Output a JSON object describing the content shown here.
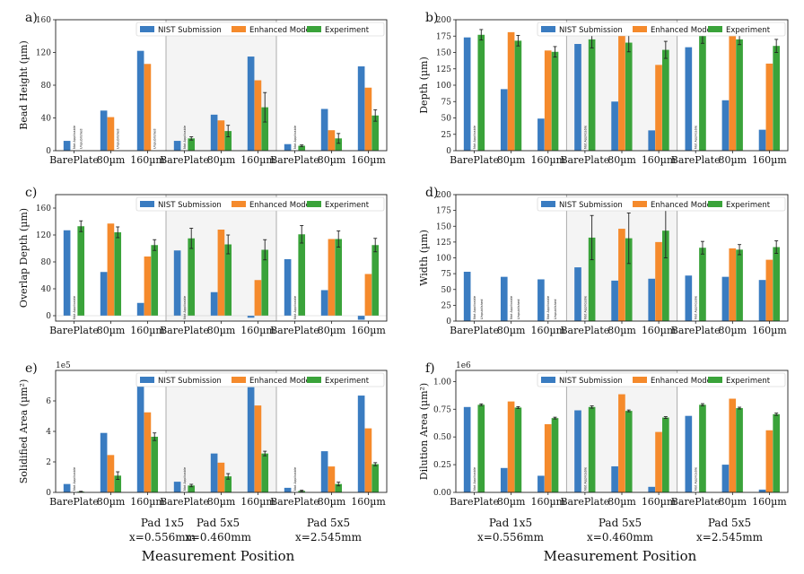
{
  "figure": {
    "groups": [
      {
        "line1": "Pad 1x5",
        "line2": "x=0.556mm"
      },
      {
        "line1": "Pad 5x5",
        "line2": "x=0.460mm"
      },
      {
        "line1": "Pad 5x5",
        "line2": "x=2.545mm"
      }
    ],
    "x_axis_title": "Measurement Position",
    "x_tick_labels": [
      "BarePlate",
      "80µm",
      "160µm",
      "BarePlate",
      "80µm",
      "160µm",
      "BarePlate",
      "80µm",
      "160µm"
    ],
    "legend": [
      "NIST Submission",
      "Enhanced Model",
      "Experiment"
    ],
    "colors": {
      "nist": "#3a7cc1",
      "enhanced": "#f58a2c",
      "experiment": "#3aa33a"
    },
    "na_text": "Not Applicable",
    "unpub_text": "Unpublished"
  },
  "chart_data": [
    {
      "type": "bar",
      "panel": "a)",
      "ylabel": "Bead Height (µm)",
      "ylim": [
        0,
        160
      ],
      "yticks": [
        0,
        40,
        80,
        120,
        160
      ],
      "yticks_labels": [
        "0",
        "40",
        "80",
        "120",
        "160"
      ],
      "exp_text": "",
      "series": [
        {
          "name": "NIST Submission",
          "values": [
            12,
            49,
            122,
            12,
            44,
            115,
            8,
            51,
            103
          ]
        },
        {
          "name": "Enhanced Model",
          "values": [
            null,
            41,
            106,
            null,
            37,
            86,
            null,
            25,
            77
          ]
        },
        {
          "name": "Experiment",
          "values": [
            null,
            null,
            null,
            15,
            24,
            53,
            6,
            15,
            43
          ],
          "errors": [
            null,
            null,
            null,
            2,
            7,
            18,
            1,
            6,
            7
          ]
        }
      ],
      "annotations": [
        {
          "bar": 0,
          "series": 1,
          "text": "Not Applicable"
        },
        {
          "bar": 0,
          "series": 2,
          "text": "Unpublished"
        },
        {
          "bar": 1,
          "series": 2,
          "text": "Unpublished"
        },
        {
          "bar": 2,
          "series": 2,
          "text": "Unpublished"
        },
        {
          "bar": 3,
          "series": 1,
          "text": "Not Applicable"
        },
        {
          "bar": 6,
          "series": 1,
          "text": "Not Applicable"
        }
      ]
    },
    {
      "type": "bar",
      "panel": "b)",
      "ylabel": "Depth (µm)",
      "ylim": [
        0,
        200
      ],
      "yticks": [
        0,
        25,
        50,
        75,
        100,
        125,
        150,
        175,
        200
      ],
      "yticks_labels": [
        "0",
        "25",
        "50",
        "75",
        "100",
        "125",
        "150",
        "175",
        "200"
      ],
      "exp_text": "",
      "series": [
        {
          "name": "NIST Submission",
          "values": [
            173,
            94,
            49,
            163,
            75,
            31,
            158,
            77,
            32
          ]
        },
        {
          "name": "Enhanced Model",
          "values": [
            null,
            181,
            153,
            null,
            186,
            131,
            null,
            175,
            133
          ]
        },
        {
          "name": "Experiment",
          "values": [
            177,
            168,
            151,
            170,
            165,
            154,
            176,
            170,
            160
          ],
          "errors": [
            8,
            8,
            8,
            13,
            14,
            13,
            12,
            8,
            10
          ]
        }
      ],
      "annotations": [
        {
          "bar": 0,
          "series": 1,
          "text": "Not Applicable"
        },
        {
          "bar": 3,
          "series": 1,
          "text": "Not Applicable"
        },
        {
          "bar": 6,
          "series": 1,
          "text": "Not Applicable"
        }
      ]
    },
    {
      "type": "bar",
      "panel": "c)",
      "ylabel": "Overlap Depth (µm)",
      "ylim": [
        -8,
        180
      ],
      "yticks": [
        0,
        40,
        80,
        120,
        160
      ],
      "yticks_labels": [
        "0",
        "40",
        "80",
        "120",
        "160"
      ],
      "exp_text": "",
      "series": [
        {
          "name": "NIST Submission",
          "values": [
            127,
            65,
            19,
            97,
            35,
            -3,
            84,
            38,
            -6
          ]
        },
        {
          "name": "Enhanced Model",
          "values": [
            null,
            137,
            88,
            null,
            128,
            53,
            null,
            114,
            62
          ]
        },
        {
          "name": "Experiment",
          "values": [
            133,
            124,
            105,
            115,
            106,
            98,
            121,
            114,
            105
          ],
          "errors": [
            8,
            8,
            8,
            15,
            14,
            15,
            13,
            12,
            10
          ]
        }
      ],
      "annotations": [
        {
          "bar": 0,
          "series": 1,
          "text": "Not Applicable"
        },
        {
          "bar": 3,
          "series": 1,
          "text": "Not Applicable"
        },
        {
          "bar": 6,
          "series": 1,
          "text": "Not Applicable"
        }
      ]
    },
    {
      "type": "bar",
      "panel": "d)",
      "ylabel": "Width (µm)",
      "ylim": [
        0,
        200
      ],
      "yticks": [
        0,
        25,
        50,
        75,
        100,
        125,
        150,
        175,
        200
      ],
      "yticks_labels": [
        "0",
        "25",
        "50",
        "75",
        "100",
        "125",
        "150",
        "175",
        "200"
      ],
      "exp_text": "",
      "series": [
        {
          "name": "NIST Submission",
          "values": [
            78,
            70,
            66,
            85,
            64,
            67,
            72,
            70,
            65
          ]
        },
        {
          "name": "Enhanced Model",
          "values": [
            null,
            null,
            null,
            null,
            146,
            125,
            null,
            115,
            97
          ]
        },
        {
          "name": "Experiment",
          "values": [
            null,
            null,
            null,
            132,
            131,
            143,
            116,
            113,
            117
          ],
          "errors": [
            null,
            null,
            null,
            35,
            40,
            43,
            10,
            8,
            10
          ]
        }
      ],
      "annotations": [
        {
          "bar": 0,
          "series": 1,
          "text": "Not Applicable"
        },
        {
          "bar": 0,
          "series": 2,
          "text": "Unpublished"
        },
        {
          "bar": 1,
          "series": 1,
          "text": "Not Applicable"
        },
        {
          "bar": 1,
          "series": 2,
          "text": "Unpublished"
        },
        {
          "bar": 2,
          "series": 1,
          "text": "Not Applicable"
        },
        {
          "bar": 2,
          "series": 2,
          "text": "Unpublished"
        },
        {
          "bar": 3,
          "series": 1,
          "text": "Not Applicable"
        },
        {
          "bar": 6,
          "series": 1,
          "text": "Not Applicable"
        }
      ]
    },
    {
      "type": "bar",
      "panel": "e)",
      "ylabel": "Solidified Area (µm²)",
      "ylim": [
        0,
        800000
      ],
      "yticks": [
        0,
        200000,
        400000,
        600000
      ],
      "yticks_labels": [
        "0",
        "2",
        "4",
        "6"
      ],
      "exp_text": "1e5",
      "series": [
        {
          "name": "NIST Submission",
          "values": [
            55000,
            390000,
            700000,
            70000,
            255000,
            690000,
            30000,
            270000,
            635000
          ]
        },
        {
          "name": "Enhanced Model",
          "values": [
            null,
            245000,
            525000,
            null,
            195000,
            570000,
            null,
            170000,
            420000
          ]
        },
        {
          "name": "Experiment",
          "values": [
            5000,
            110000,
            365000,
            45000,
            105000,
            255000,
            10000,
            55000,
            185000
          ],
          "errors": [
            2000,
            25000,
            25000,
            8000,
            18000,
            15000,
            4000,
            12000,
            10000
          ]
        }
      ],
      "annotations": [
        {
          "bar": 0,
          "series": 1,
          "text": "Not Applicable"
        },
        {
          "bar": 3,
          "series": 1,
          "text": "Not Applicable"
        },
        {
          "bar": 6,
          "series": 1,
          "text": "Not Applicable"
        }
      ]
    },
    {
      "type": "bar",
      "panel": "f)",
      "ylabel": "Dilution Area (µm²)",
      "ylim": [
        0,
        1100000
      ],
      "yticks": [
        0,
        250000,
        500000,
        750000,
        1000000
      ],
      "yticks_labels": [
        "0.00",
        "0.25",
        "0.50",
        "0.75",
        "1.00"
      ],
      "exp_text": "1e6",
      "series": [
        {
          "name": "NIST Submission",
          "values": [
            770000,
            220000,
            150000,
            740000,
            235000,
            50000,
            690000,
            250000,
            25000
          ]
        },
        {
          "name": "Enhanced Model",
          "values": [
            null,
            820000,
            615000,
            null,
            885000,
            545000,
            null,
            845000,
            560000
          ]
        },
        {
          "name": "Experiment",
          "values": [
            790000,
            765000,
            670000,
            770000,
            735000,
            675000,
            790000,
            760000,
            705000
          ],
          "errors": [
            8000,
            8000,
            8000,
            10000,
            8000,
            8000,
            10000,
            8000,
            10000
          ]
        }
      ],
      "annotations": [
        {
          "bar": 0,
          "series": 1,
          "text": "Not Applicable"
        },
        {
          "bar": 3,
          "series": 1,
          "text": "Not Applicable"
        },
        {
          "bar": 6,
          "series": 1,
          "text": "Not Applicable"
        }
      ]
    }
  ]
}
